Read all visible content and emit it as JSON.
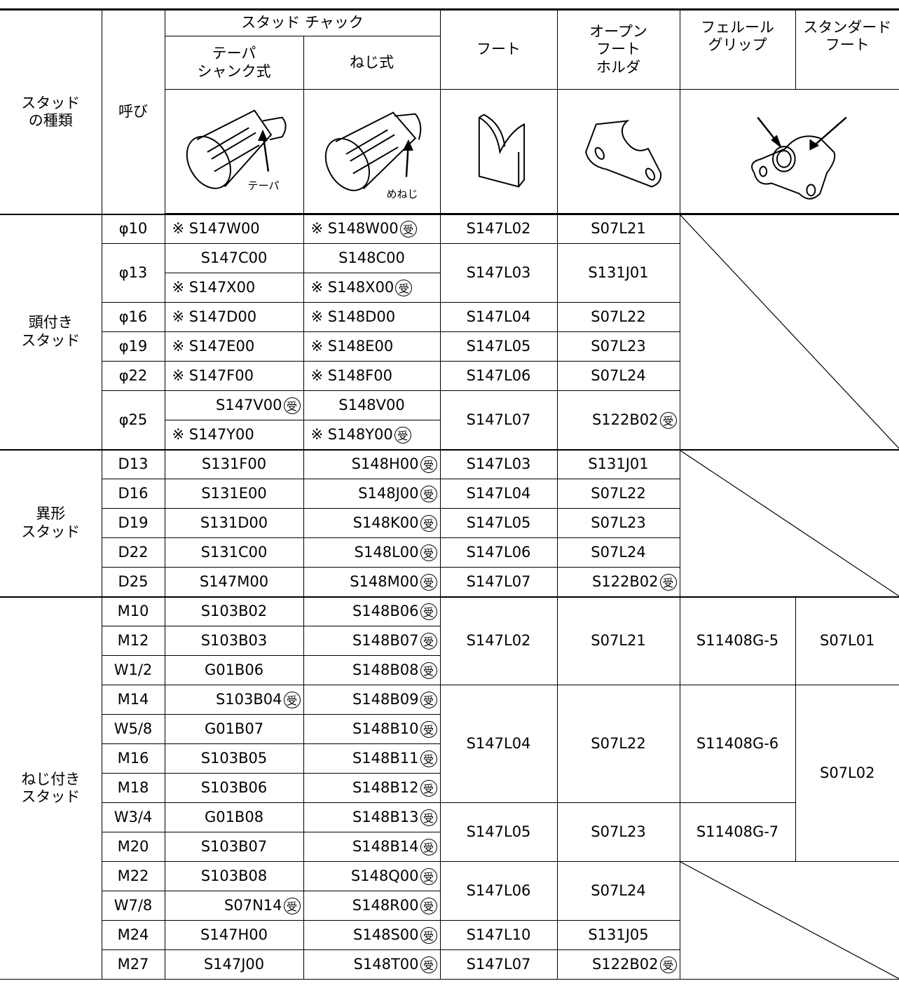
{
  "header": {
    "stud_type": "スタッド\nの種類",
    "size": "呼び",
    "chuck": "スタッド チャック",
    "taper": "テーパ\nシャンク式",
    "screw": "ねじ式",
    "foot": "フート",
    "open_foot": "オープン\nフート\nホルダ",
    "ferrule": "フェルール\nグリップ",
    "standard_foot": "スタンダード\nフート",
    "taper_note": "テーパ",
    "screw_note": "めねじ"
  },
  "sections": [
    {
      "name": "頭付き\nスタッド",
      "rows": [
        {
          "size": "φ10",
          "taper": "※ S147W00",
          "screw": {
            "text": "※ S148W00",
            "mark": "受"
          },
          "foot": "S147L02",
          "open": "S07L21",
          "ferrule": null,
          "standard": null
        },
        {
          "size": "φ13",
          "taper": "S147C00",
          "screw": "S148C00",
          "foot": "S147L03",
          "open": "S131J01"
        },
        {
          "taper": "※ S147X00",
          "screw": {
            "text": "※ S148X00",
            "mark": "受"
          }
        },
        {
          "size": "φ16",
          "taper": "※ S147D00",
          "screw": "※ S148D00",
          "foot": "S147L04",
          "open": "S07L22"
        },
        {
          "size": "φ19",
          "taper": "※ S147E00",
          "screw": "※ S148E00",
          "foot": "S147L05",
          "open": "S07L23"
        },
        {
          "size": "φ22",
          "taper": "※ S147F00",
          "screw": "※ S148F00",
          "foot": "S147L06",
          "open": "S07L24"
        },
        {
          "size": "φ25",
          "taper": {
            "text": "S147V00",
            "mark": "受"
          },
          "screw": "S148V00",
          "foot": "S147L07",
          "open": {
            "text": "S122B02",
            "mark": "受"
          }
        },
        {
          "taper": "※ S147Y00",
          "screw": {
            "text": "※ S148Y00",
            "mark": "受"
          }
        }
      ]
    },
    {
      "name": "異形\nスタッド",
      "rows": [
        {
          "size": "D13",
          "taper": "S131F00",
          "screw": {
            "text": "S148H00",
            "mark": "受"
          },
          "foot": "S147L03",
          "open": "S131J01",
          "ferrule": null,
          "standard": null
        },
        {
          "size": "D16",
          "taper": "S131E00",
          "screw": {
            "text": "S148J00",
            "mark": "受"
          },
          "foot": "S147L04",
          "open": "S07L22"
        },
        {
          "size": "D19",
          "taper": "S131D00",
          "screw": {
            "text": "S148K00",
            "mark": "受"
          },
          "foot": "S147L05",
          "open": "S07L23"
        },
        {
          "size": "D22",
          "taper": "S131C00",
          "screw": {
            "text": "S148L00",
            "mark": "受"
          },
          "foot": "S147L06",
          "open": "S07L24"
        },
        {
          "size": "D25",
          "taper": "S147M00",
          "screw": {
            "text": "S148M00",
            "mark": "受"
          },
          "foot": "S147L07",
          "open": {
            "text": "S122B02",
            "mark": "受"
          }
        }
      ]
    },
    {
      "name": "ねじ付き\nスタッド",
      "rows": [
        {
          "size": "M10",
          "taper": "S103B02",
          "screw": {
            "text": "S148B06",
            "mark": "受"
          },
          "foot": "S147L02",
          "open": "S07L21",
          "ferrule": "S11408G-5",
          "standard": "S07L01"
        },
        {
          "size": "M12",
          "taper": "S103B03",
          "screw": {
            "text": "S148B07",
            "mark": "受"
          }
        },
        {
          "size": "W1/2",
          "taper": "G01B06",
          "screw": {
            "text": "S148B08",
            "mark": "受"
          }
        },
        {
          "size": "M14",
          "taper": {
            "text": "S103B04",
            "mark": "受"
          },
          "screw": {
            "text": "S148B09",
            "mark": "受"
          },
          "foot": "S147L04",
          "open": "S07L22",
          "ferrule": "S11408G-6",
          "standard": "S07L02"
        },
        {
          "size": "W5/8",
          "taper": "G01B07",
          "screw": {
            "text": "S148B10",
            "mark": "受"
          }
        },
        {
          "size": "M16",
          "taper": "S103B05",
          "screw": {
            "text": "S148B11",
            "mark": "受"
          }
        },
        {
          "size": "M18",
          "taper": "S103B06",
          "screw": {
            "text": "S148B12",
            "mark": "受"
          }
        },
        {
          "size": "W3/4",
          "taper": "G01B08",
          "screw": {
            "text": "S148B13",
            "mark": "受"
          },
          "foot": "S147L05",
          "open": "S07L23",
          "ferrule": "S11408G-7"
        },
        {
          "size": "M20",
          "taper": "S103B07",
          "screw": {
            "text": "S148B14",
            "mark": "受"
          }
        },
        {
          "size": "M22",
          "taper": "S103B08",
          "screw": {
            "text": "S148Q00",
            "mark": "受"
          },
          "foot": "S147L06",
          "open": "S07L24",
          "ferrule": null,
          "standard": null
        },
        {
          "size": "W7/8",
          "taper": {
            "text": "S07N14",
            "mark": "受"
          },
          "screw": {
            "text": "S148R00",
            "mark": "受"
          }
        },
        {
          "size": "M24",
          "taper": "S147H00",
          "screw": {
            "text": "S148S00",
            "mark": "受"
          },
          "foot": "S147L10",
          "open": "S131J05"
        },
        {
          "size": "M27",
          "taper": "S147J00",
          "screw": {
            "text": "S148T00",
            "mark": "受"
          },
          "foot": "S147L07",
          "open": {
            "text": "S122B02",
            "mark": "受"
          }
        }
      ]
    }
  ]
}
